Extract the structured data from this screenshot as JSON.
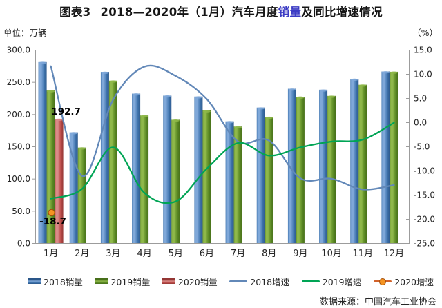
{
  "title": {
    "figure_label": "图表3",
    "part1": "2018—2020年（1月）汽车月度",
    "highlight": "销量",
    "part2": "及同比增速情况"
  },
  "axes": {
    "left_unit": "单位：万辆",
    "right_unit": "（%）",
    "left_ticks": [
      "300.0",
      "250.0",
      "200.0",
      "150.0",
      "100.0",
      "50.0",
      "0.0"
    ],
    "right_ticks": [
      "15.0",
      "10.0",
      "5.0",
      "0.0",
      "-5.0",
      "-10.0",
      "-15.0",
      "-20.0",
      "-25.0"
    ],
    "left_range": [
      0,
      300
    ],
    "right_range": [
      -25,
      15
    ]
  },
  "chart_data": {
    "type": "bar+line combo",
    "categories": [
      "1月",
      "2月",
      "3月",
      "4月",
      "5月",
      "6月",
      "7月",
      "8月",
      "9月",
      "10月",
      "11月",
      "12月"
    ],
    "series": [
      {
        "name": "2018销量",
        "type": "bar",
        "axis": "left",
        "color_key": "bar_2018",
        "values": [
          280.9,
          171.8,
          265.6,
          231.9,
          228.8,
          227.4,
          188.9,
          210.3,
          239.4,
          238.0,
          254.8,
          266.2
        ]
      },
      {
        "name": "2019销量",
        "type": "bar",
        "axis": "left",
        "color_key": "bar_2019",
        "values": [
          236.7,
          148.2,
          252.0,
          198.0,
          191.3,
          205.7,
          180.8,
          195.8,
          227.1,
          228.4,
          245.7,
          265.8
        ]
      },
      {
        "name": "2020销量",
        "type": "bar",
        "axis": "left",
        "color_key": "bar_2020",
        "values": [
          192.7,
          null,
          null,
          null,
          null,
          null,
          null,
          null,
          null,
          null,
          null,
          null
        ]
      },
      {
        "name": "2018增速",
        "type": "line",
        "axis": "right",
        "color_key": "line_2018",
        "values": [
          11.6,
          -11.1,
          4.7,
          11.5,
          9.6,
          4.8,
          -4.0,
          -3.8,
          -11.6,
          -11.7,
          -13.9,
          -13.0
        ]
      },
      {
        "name": "2019增速",
        "type": "line",
        "axis": "right",
        "color_key": "line_2019",
        "values": [
          -15.8,
          -13.8,
          -5.2,
          -14.6,
          -16.4,
          -9.6,
          -4.3,
          -6.9,
          -5.2,
          -4.0,
          -3.6,
          -0.1
        ]
      },
      {
        "name": "2020增速",
        "type": "point",
        "axis": "right",
        "color_key": "line_2020",
        "values": [
          -18.7,
          null,
          null,
          null,
          null,
          null,
          null,
          null,
          null,
          null,
          null,
          null
        ]
      }
    ],
    "data_labels": [
      {
        "series": "2020销量",
        "category": "1月",
        "text": "192.7"
      },
      {
        "series": "2020增速",
        "category": "1月",
        "text": "-18.7"
      }
    ],
    "title": "2018—2020年（1月）汽车月度销量及同比增速情况",
    "xlabel": "",
    "ylabel_left": "单位：万辆",
    "ylabel_right": "（%）",
    "grid": false,
    "legend_position": "bottom"
  },
  "legend": {
    "items": [
      {
        "label": "2018销量",
        "swatch": "bar",
        "color_key": "bar_2018"
      },
      {
        "label": "2019销量",
        "swatch": "bar",
        "color_key": "bar_2019"
      },
      {
        "label": "2020销量",
        "swatch": "bar",
        "color_key": "bar_2020"
      },
      {
        "label": "2018增速",
        "swatch": "line",
        "color_key": "line_2018"
      },
      {
        "label": "2019增速",
        "swatch": "line",
        "color_key": "line_2019"
      },
      {
        "label": "2020增速",
        "swatch": "line-marker",
        "color_key": "line_2020"
      }
    ]
  },
  "source": "数据来源：中国汽车工业协会",
  "colors": {
    "bar_2018": {
      "light": "#7FA8D9",
      "main": "#4176B0",
      "dark": "#2A5689"
    },
    "bar_2019": {
      "light": "#8FB84A",
      "main": "#5E8D26",
      "dark": "#476F1A"
    },
    "bar_2020": {
      "light": "#D98B88",
      "main": "#C0504D",
      "dark": "#943634"
    },
    "line_2018": "#6288B8",
    "line_2019": "#00A455",
    "line_2020": "#D2622A",
    "marker_2020_fill": "#F49422",
    "marker_2020_stroke": "#A34E08",
    "title_highlight": "#3B3BC4",
    "axis": "#9C9C9C",
    "text": "#262626",
    "label_text": "#000000"
  }
}
